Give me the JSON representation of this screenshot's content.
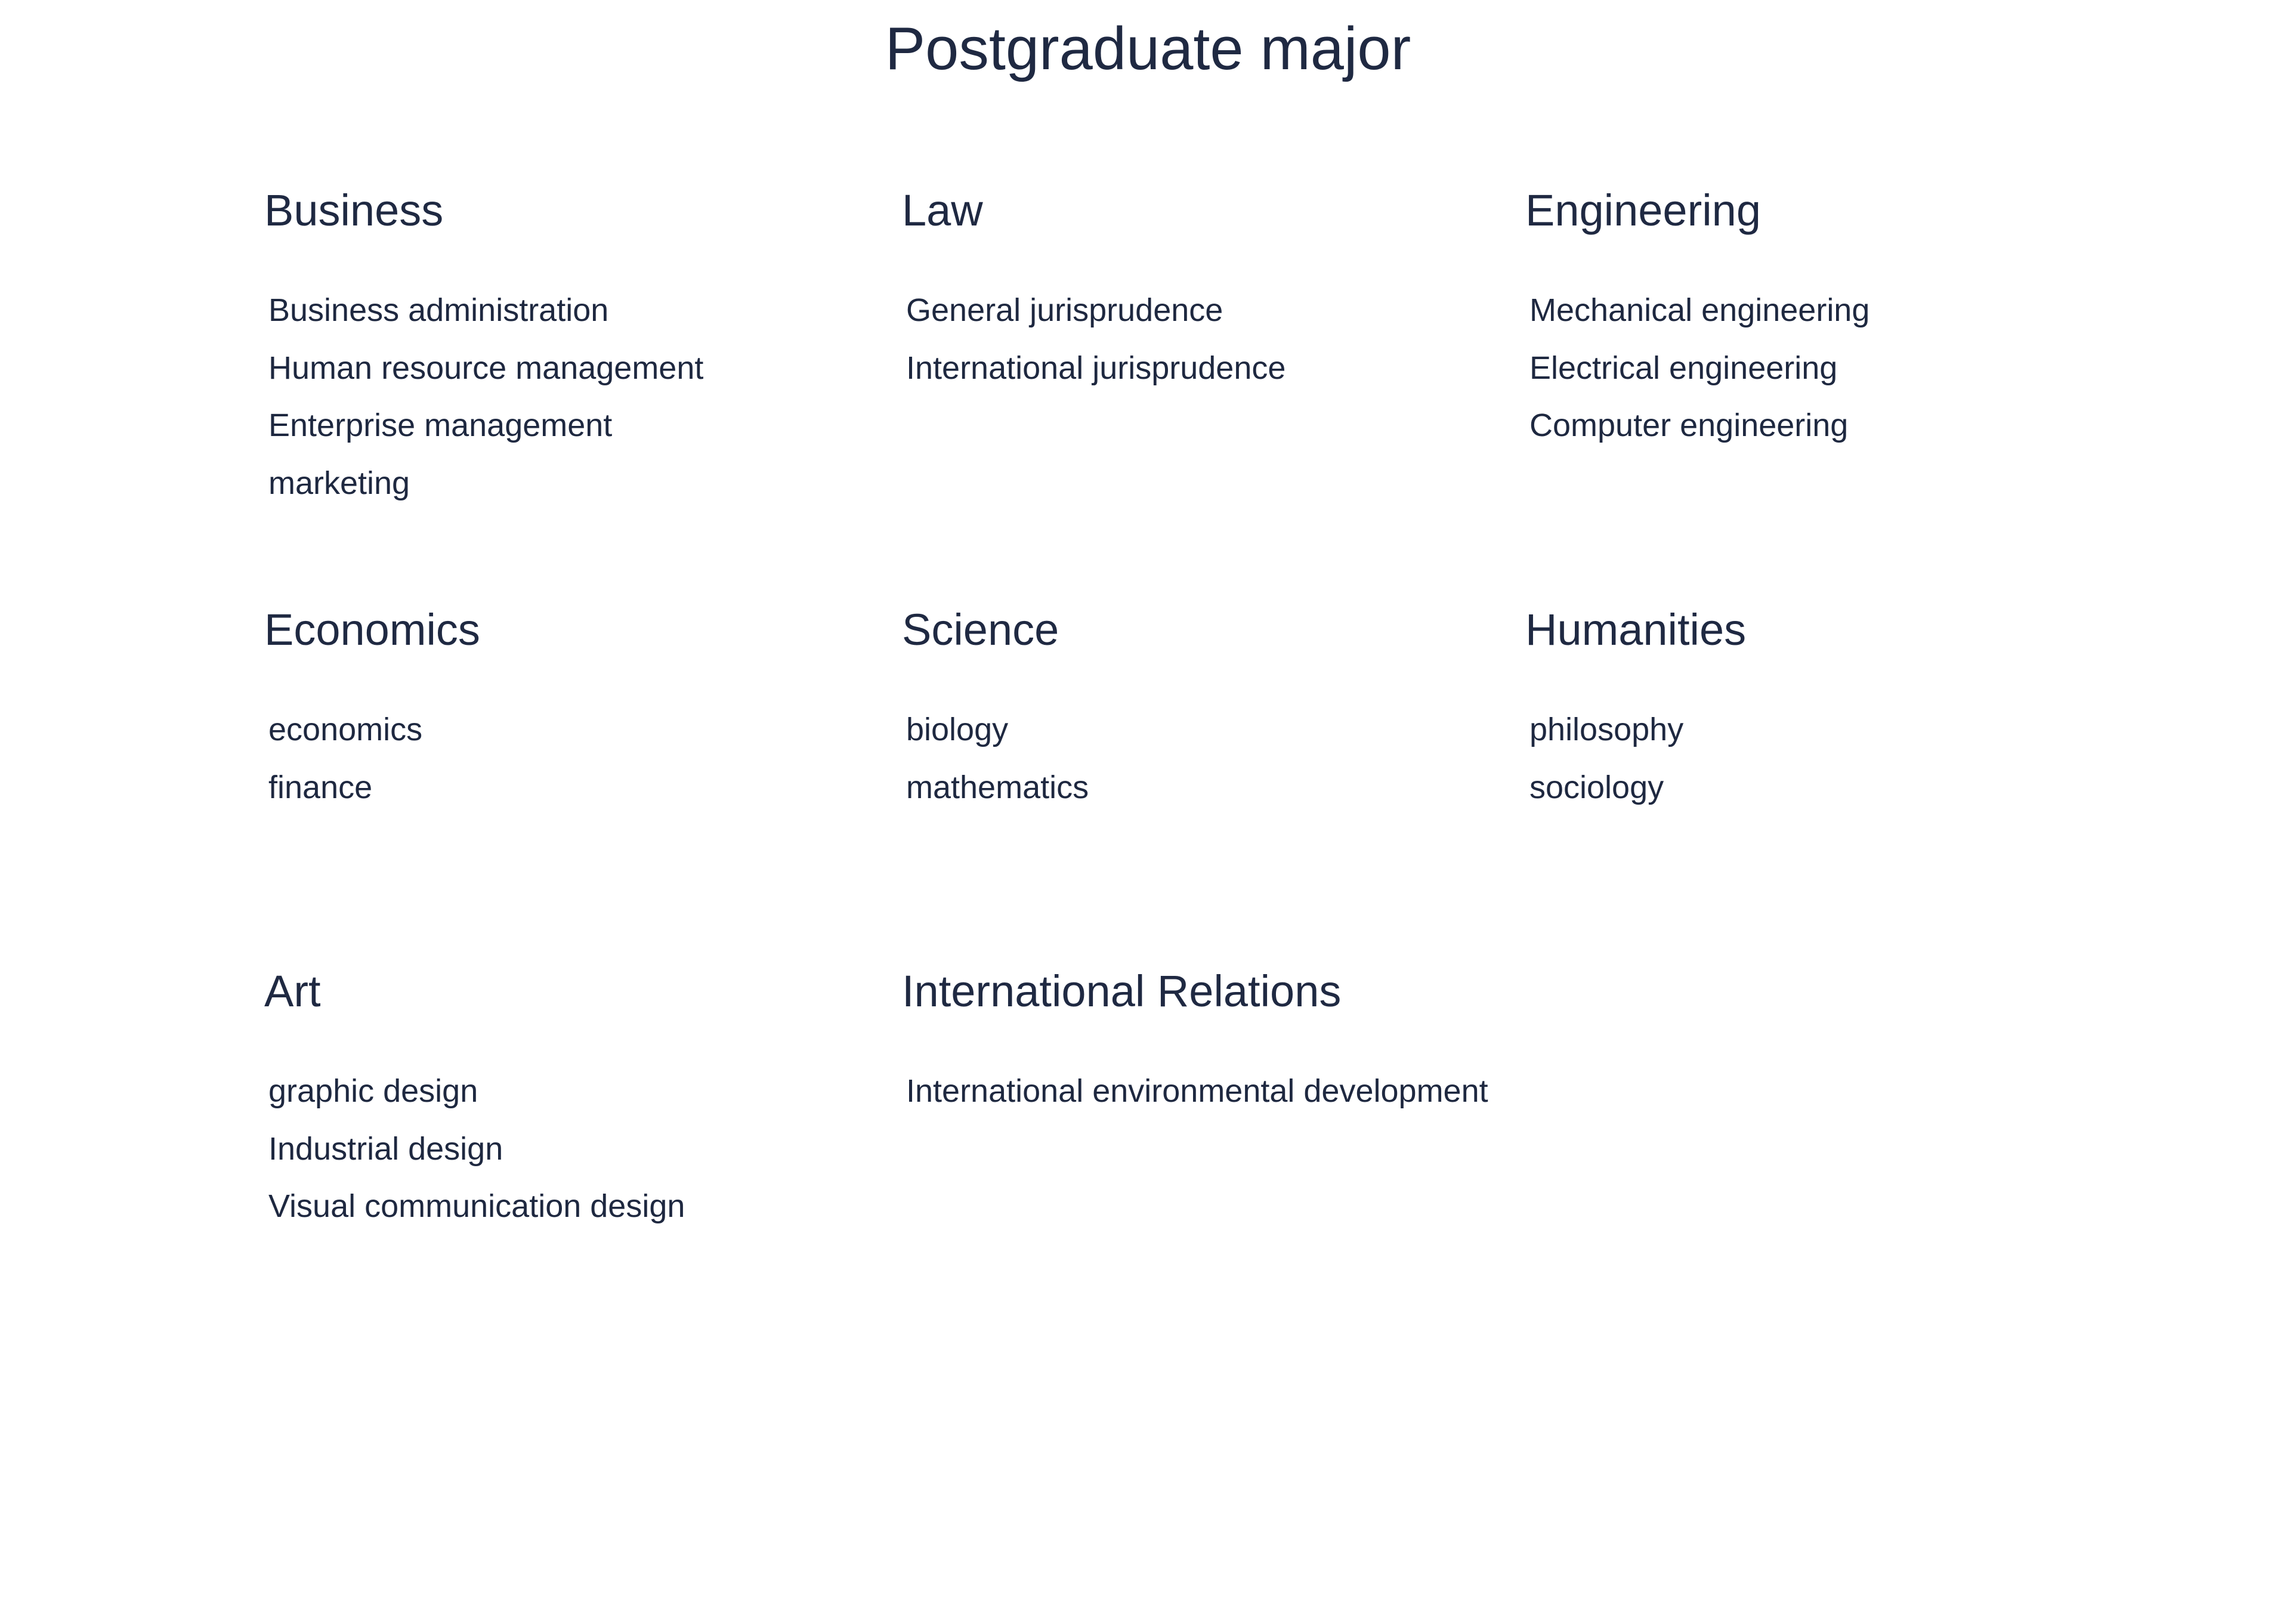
{
  "page": {
    "title": "Postgraduate major"
  },
  "categories": [
    {
      "id": "business",
      "heading": "Business",
      "majors": [
        "Business administration",
        "Human resource management",
        "Enterprise management",
        "marketing"
      ]
    },
    {
      "id": "law",
      "heading": "Law",
      "majors": [
        "General jurisprudence",
        "International jurisprudence"
      ]
    },
    {
      "id": "engineering",
      "heading": "Engineering",
      "majors": [
        "Mechanical engineering",
        "Electrical engineering",
        "Computer engineering"
      ]
    },
    {
      "id": "economics",
      "heading": "Economics",
      "majors": [
        "economics",
        "finance"
      ]
    },
    {
      "id": "science",
      "heading": "Science",
      "majors": [
        "biology",
        "mathematics"
      ]
    },
    {
      "id": "humanities",
      "heading": "Humanities",
      "majors": [
        "philosophy",
        "sociology"
      ]
    },
    {
      "id": "art",
      "heading": "Art",
      "majors": [
        "graphic design",
        "Industrial design",
        "Visual communication design"
      ]
    },
    {
      "id": "international-relations",
      "heading": "International Relations",
      "majors": [
        "International environmental development"
      ]
    }
  ],
  "colors": {
    "text": "#1e2840",
    "background": "#ffffff"
  }
}
